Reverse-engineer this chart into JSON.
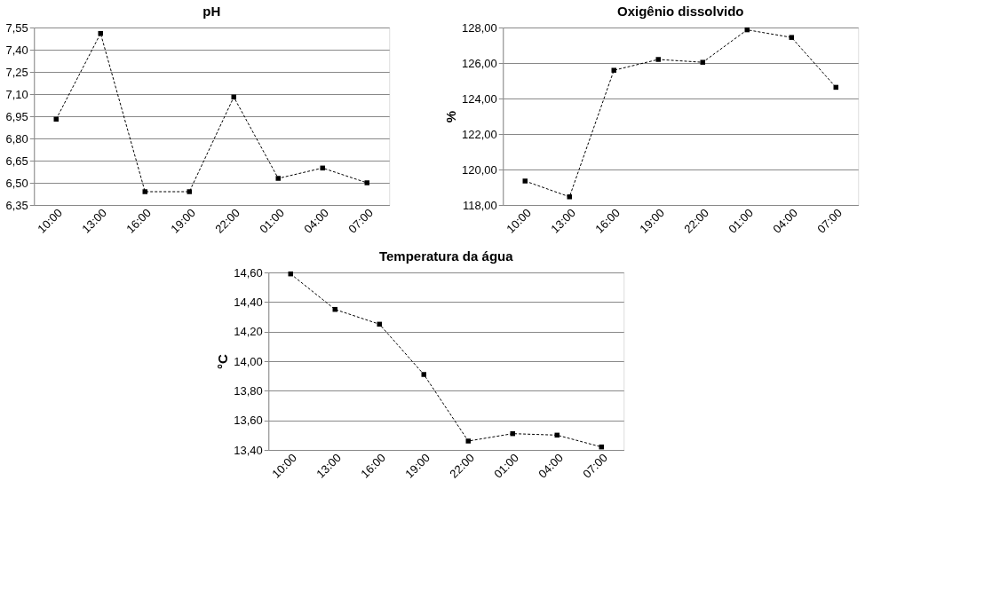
{
  "chart_data": [
    {
      "type": "line",
      "title": "pH",
      "categories": [
        "10:00",
        "13:00",
        "16:00",
        "19:00",
        "22:00",
        "01:00",
        "04:00",
        "07:00"
      ],
      "series": [
        {
          "color": "#000000",
          "values": [
            6.93,
            7.51,
            6.44,
            6.44,
            7.08,
            6.53,
            6.6,
            6.5
          ]
        }
      ],
      "ylim": [
        6.35,
        7.55
      ],
      "yticks": [
        {
          "value": 6.35,
          "label": "6,35"
        },
        {
          "value": 6.5,
          "label": "6,50"
        },
        {
          "value": 6.65,
          "label": "6,65"
        },
        {
          "value": 6.8,
          "label": "6,80"
        },
        {
          "value": 6.95,
          "label": "6,95"
        },
        {
          "value": 7.1,
          "label": "7,10"
        },
        {
          "value": 7.25,
          "label": "7,25"
        },
        {
          "value": 7.4,
          "label": "7,40"
        },
        {
          "value": 7.55,
          "label": "7,55"
        }
      ],
      "grid": "y",
      "legend": false,
      "marker": "square",
      "line_style": "dashed"
    },
    {
      "type": "line",
      "title": "Oxigênio dissolvido",
      "ylabel": "%",
      "categories": [
        "10:00",
        "13:00",
        "16:00",
        "19:00",
        "22:00",
        "01:00",
        "04:00",
        "07:00"
      ],
      "series": [
        {
          "color": "#000000",
          "values": [
            119.35,
            118.46,
            125.59,
            126.2,
            126.04,
            127.87,
            127.44,
            124.63
          ]
        }
      ],
      "ylim": [
        118,
        128
      ],
      "yticks": [
        {
          "value": 118,
          "label": "118,00"
        },
        {
          "value": 120,
          "label": "120,00"
        },
        {
          "value": 122,
          "label": "122,00"
        },
        {
          "value": 124,
          "label": "124,00"
        },
        {
          "value": 126,
          "label": "126,00"
        },
        {
          "value": 128,
          "label": "128,00"
        }
      ],
      "grid": "y",
      "legend": false,
      "marker": "square",
      "line_style": "dashed"
    },
    {
      "type": "line",
      "title": "Temperatura da água",
      "ylabel": "°C",
      "categories": [
        "10:00",
        "13:00",
        "16:00",
        "19:00",
        "22:00",
        "01:00",
        "04:00",
        "07:00"
      ],
      "series": [
        {
          "color": "#000000",
          "values": [
            14.59,
            14.35,
            14.25,
            13.91,
            13.46,
            13.51,
            13.5,
            13.42
          ]
        }
      ],
      "ylim": [
        13.4,
        14.6
      ],
      "yticks": [
        {
          "value": 13.4,
          "label": "13,40"
        },
        {
          "value": 13.6,
          "label": "13,60"
        },
        {
          "value": 13.8,
          "label": "13,80"
        },
        {
          "value": 14.0,
          "label": "14,00"
        },
        {
          "value": 14.2,
          "label": "14,20"
        },
        {
          "value": 14.4,
          "label": "14,40"
        },
        {
          "value": 14.6,
          "label": "14,60"
        }
      ],
      "grid": "y",
      "legend": false,
      "marker": "square",
      "line_style": "dashed"
    }
  ]
}
